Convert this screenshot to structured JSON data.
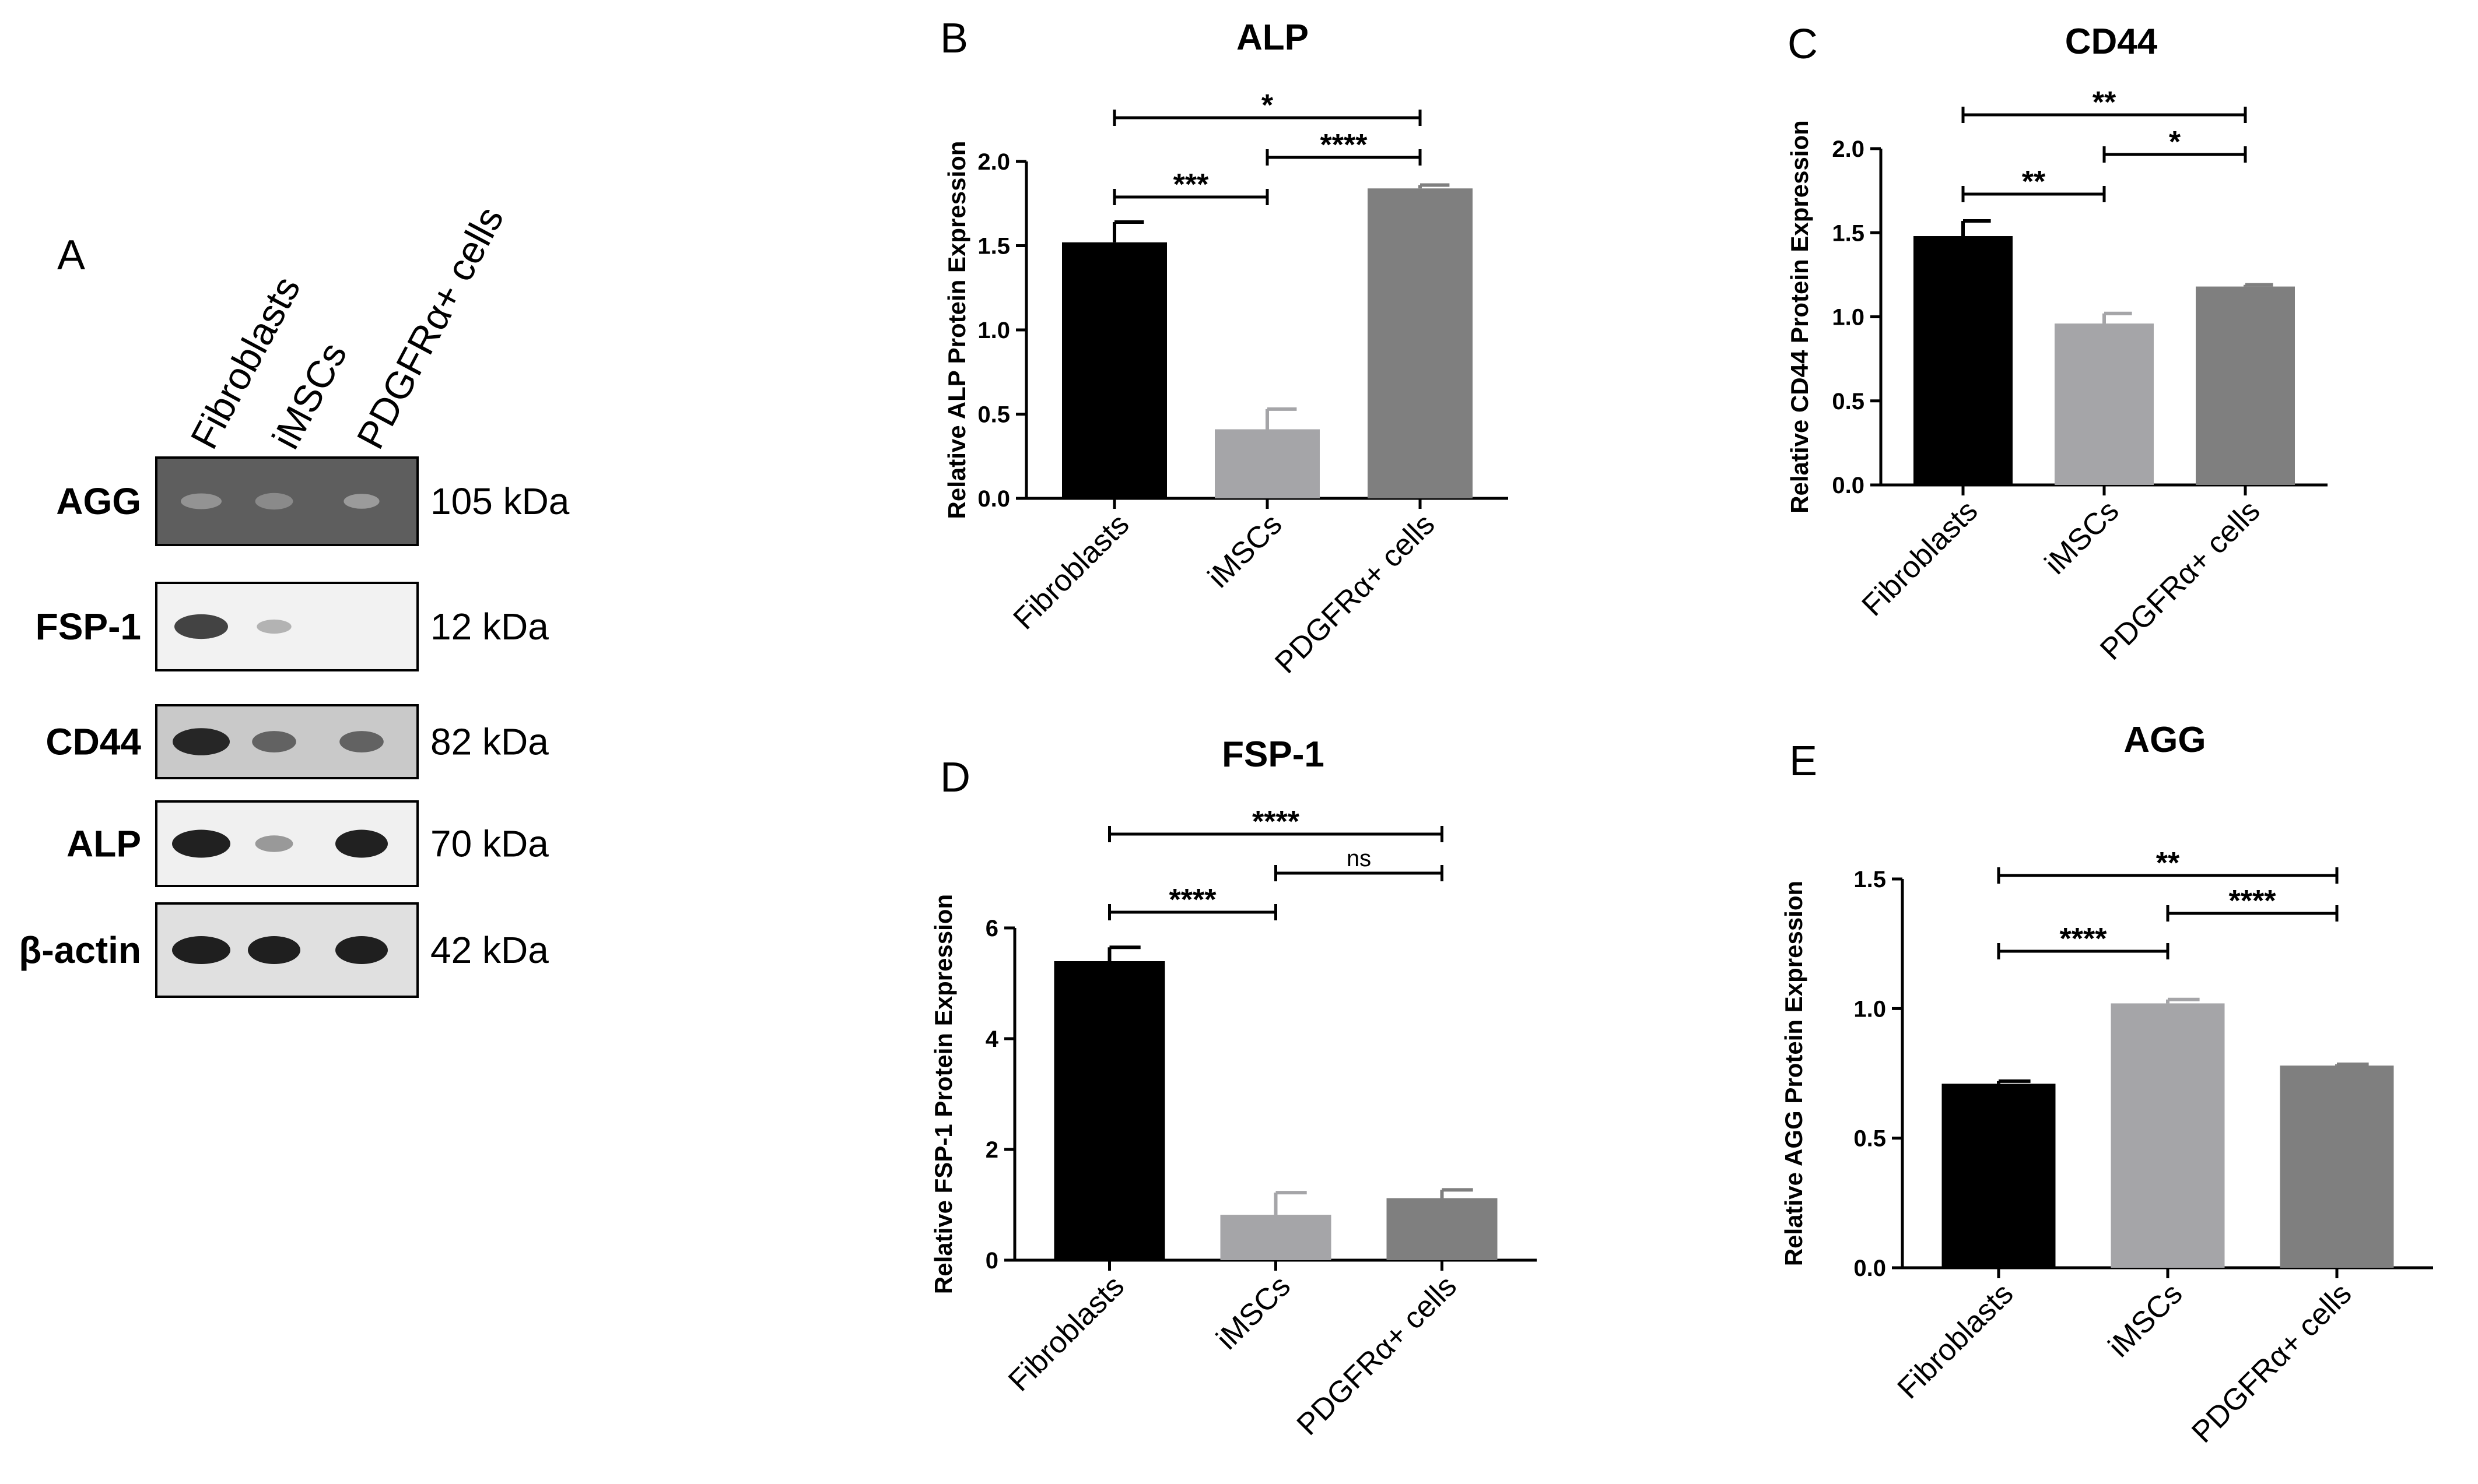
{
  "blot_panel": {
    "letter": "A",
    "lanes": [
      "Fibroblasts",
      "iMSCs",
      "PDGFRα+ cells"
    ],
    "rows": [
      {
        "protein": "AGG",
        "kda": "105 kDa",
        "bg": "#5e5e5e",
        "bands": [
          0.25,
          0.3,
          0.2
        ]
      },
      {
        "protein": "FSP-1",
        "kda": "12 kDa",
        "bg": "#f2f2f2",
        "bands": [
          0.8,
          0.15,
          0.0
        ]
      },
      {
        "protein": "CD44",
        "kda": "82 kDa",
        "bg": "#c9c9c9",
        "bands": [
          0.95,
          0.6,
          0.6
        ]
      },
      {
        "protein": "ALP",
        "kda": "70 kDa",
        "bg": "#f0f0f0",
        "bands": [
          1.0,
          0.3,
          1.0
        ]
      },
      {
        "protein": "β-actin",
        "kda": "42 kDa",
        "bg": "#e0e0e0",
        "bands": [
          1.0,
          1.0,
          1.0
        ]
      }
    ]
  },
  "chart_data": [
    {
      "id": "B",
      "type": "bar",
      "title": "ALP",
      "categories": [
        "Fibroblasts",
        "iMSCs",
        "PDGFRα+ cells"
      ],
      "values": [
        1.52,
        0.41,
        1.84
      ],
      "errors": [
        0.12,
        0.12,
        0.02
      ],
      "colors": [
        "#000000",
        "#a5a5a8",
        "#7f7f7f"
      ],
      "ylabel": "Relative ALP Protein Expression",
      "ylim": [
        0,
        2.0
      ],
      "yticks": [
        "0.0",
        "0.5",
        "1.0",
        "1.5",
        "2.0"
      ],
      "significance": [
        {
          "from": 0,
          "to": 1,
          "label": "***",
          "level": 1
        },
        {
          "from": 1,
          "to": 2,
          "label": "****",
          "level": 2
        },
        {
          "from": 0,
          "to": 2,
          "label": "*",
          "level": 3
        }
      ]
    },
    {
      "id": "C",
      "type": "bar",
      "title": "CD44",
      "categories": [
        "Fibroblasts",
        "iMSCs",
        "PDGFRα+ cells"
      ],
      "values": [
        1.48,
        0.96,
        1.18
      ],
      "errors": [
        0.09,
        0.06,
        0.01
      ],
      "colors": [
        "#000000",
        "#a5a5a8",
        "#7f7f7f"
      ],
      "ylabel": "Relative CD44 Protein Expression",
      "ylim": [
        0,
        2.0
      ],
      "yticks": [
        "0.0",
        "0.5",
        "1.0",
        "1.5",
        "2.0"
      ],
      "significance": [
        {
          "from": 0,
          "to": 1,
          "label": "**",
          "level": 1
        },
        {
          "from": 1,
          "to": 2,
          "label": "*",
          "level": 2
        },
        {
          "from": 0,
          "to": 2,
          "label": "**",
          "level": 3
        }
      ]
    },
    {
      "id": "D",
      "type": "bar",
      "title": "FSP-1",
      "categories": [
        "Fibroblasts",
        "iMSCs",
        "PDGFRα+ cells"
      ],
      "values": [
        5.4,
        0.82,
        1.12
      ],
      "errors": [
        0.25,
        0.4,
        0.15
      ],
      "colors": [
        "#000000",
        "#a5a5a8",
        "#7f7f7f"
      ],
      "ylabel": "Relative FSP-1 Protein Expression",
      "ylim": [
        0,
        6
      ],
      "yticks": [
        "0",
        "2",
        "4",
        "6"
      ],
      "significance": [
        {
          "from": 0,
          "to": 1,
          "label": "****",
          "level": 1
        },
        {
          "from": 1,
          "to": 2,
          "label": "ns",
          "level": 2
        },
        {
          "from": 0,
          "to": 2,
          "label": "****",
          "level": 3
        }
      ]
    },
    {
      "id": "E",
      "type": "bar",
      "title": "AGG",
      "categories": [
        "Fibroblasts",
        "iMSCs",
        "PDGFRα+ cells"
      ],
      "values": [
        0.71,
        1.02,
        0.78
      ],
      "errors": [
        0.01,
        0.015,
        0.005
      ],
      "colors": [
        "#000000",
        "#a5a5a8",
        "#7f7f7f"
      ],
      "ylabel": "Relative AGG Protein Expression",
      "ylim": [
        0,
        1.5
      ],
      "yticks": [
        "0.0",
        "0.5",
        "1.0",
        "1.5"
      ],
      "significance": [
        {
          "from": 0,
          "to": 1,
          "label": "****",
          "level": 1
        },
        {
          "from": 1,
          "to": 2,
          "label": "****",
          "level": 2
        },
        {
          "from": 0,
          "to": 2,
          "label": "**",
          "level": 3
        }
      ]
    }
  ]
}
